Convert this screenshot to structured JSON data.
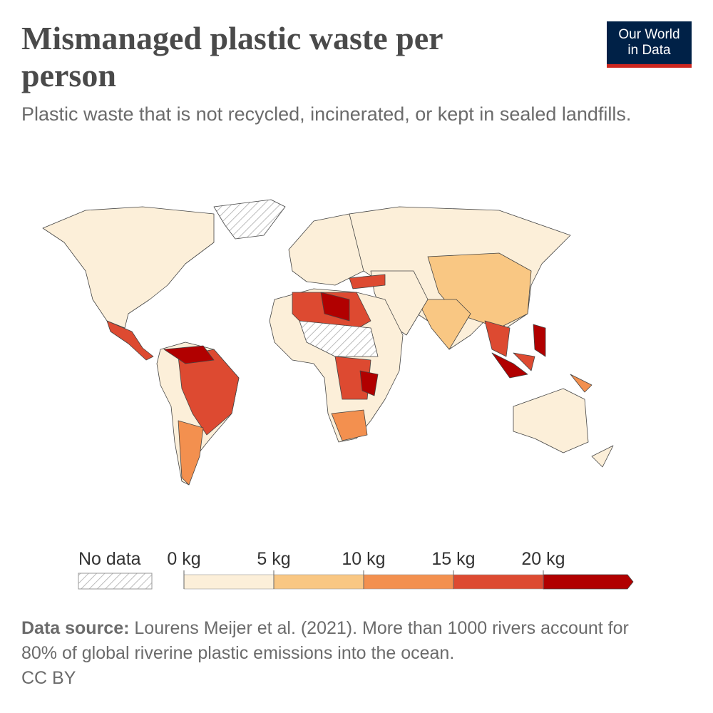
{
  "header": {
    "title": "Mismanaged plastic waste per person",
    "subtitle": "Plastic waste that is not recycled, incinerated, or kept in sealed landfills.",
    "logo": [
      "Our World",
      "in Data"
    ]
  },
  "legend": {
    "no_data": "No data",
    "xlim": [
      0,
      25
    ],
    "ticks": [
      {
        "value": 0,
        "label": "0 kg"
      },
      {
        "value": 5,
        "label": "5 kg"
      },
      {
        "value": 10,
        "label": "10 kg"
      },
      {
        "value": 15,
        "label": "15 kg"
      },
      {
        "value": 20,
        "label": "20 kg"
      }
    ],
    "colors": [
      "#fcefd9",
      "#f9c783",
      "#f3904f",
      "#dd4a31",
      "#b10000"
    ]
  },
  "footer": {
    "source_label": "Data source:",
    "source": "Lourens Meijer et al. (2021). More than 1000 rivers account for 80% of global riverine plastic emissions into the ocean.",
    "license": "CC BY"
  }
}
